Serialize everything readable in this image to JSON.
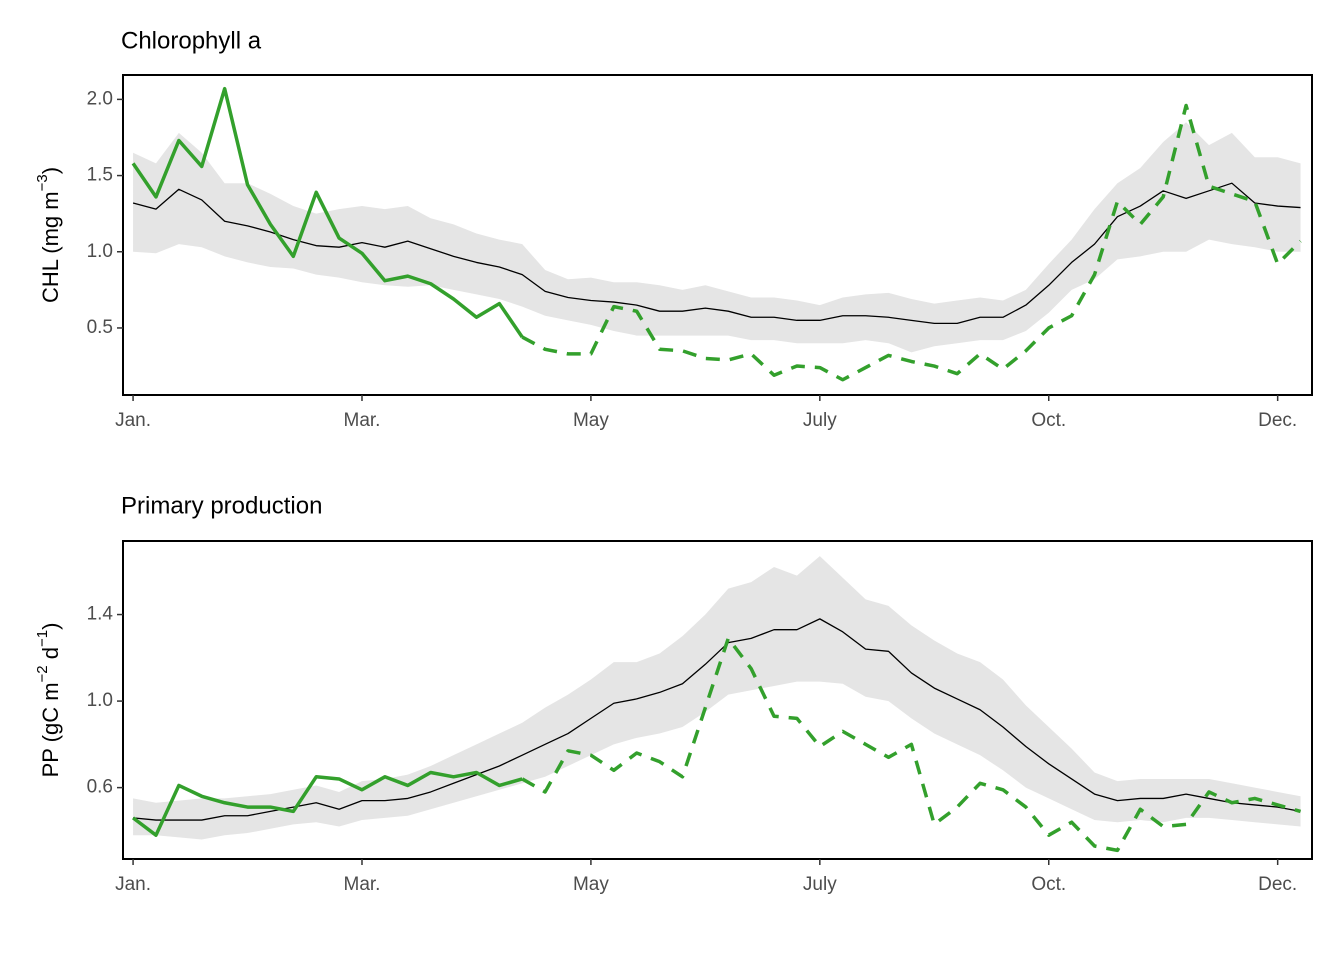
{
  "chart_data": [
    {
      "type": "line",
      "title": "Chlorophyll a",
      "ylabel": [
        "CHL (mg m",
        "−3",
        ")"
      ],
      "x": [
        0,
        1,
        2,
        3,
        4,
        5,
        6,
        7,
        8,
        9,
        10,
        11,
        12,
        13,
        14,
        15,
        16,
        17,
        18,
        19,
        20,
        21,
        22,
        23,
        24,
        25,
        26,
        27,
        28,
        29,
        30,
        31,
        32,
        33,
        34,
        35,
        36,
        37,
        38,
        39,
        40,
        41,
        42,
        43,
        44,
        45,
        46,
        47,
        48,
        49,
        50,
        51
      ],
      "xlim": [
        -0.44,
        51.5
      ],
      "xticks": [
        {
          "value": 0,
          "label": "Jan."
        },
        {
          "value": 10,
          "label": "Mar."
        },
        {
          "value": 20,
          "label": "May"
        },
        {
          "value": 30,
          "label": "July"
        },
        {
          "value": 40,
          "label": "Oct."
        },
        {
          "value": 50,
          "label": "Dec."
        }
      ],
      "ylim": [
        0.06,
        2.16
      ],
      "yticks": [
        0.5,
        {
          "value": 1,
          "label": "1.0"
        },
        1.5,
        {
          "value": 2,
          "label": "2.0"
        }
      ],
      "band": {
        "color": "#e5e5e5",
        "lower": [
          1.0,
          0.99,
          1.05,
          1.03,
          0.97,
          0.93,
          0.9,
          0.89,
          0.85,
          0.83,
          0.8,
          0.78,
          0.77,
          0.78,
          0.75,
          0.72,
          0.69,
          0.64,
          0.58,
          0.55,
          0.52,
          0.48,
          0.45,
          0.45,
          0.45,
          0.45,
          0.45,
          0.42,
          0.42,
          0.4,
          0.4,
          0.4,
          0.42,
          0.4,
          0.34,
          0.38,
          0.4,
          0.42,
          0.42,
          0.48,
          0.6,
          0.75,
          0.82,
          0.95,
          0.97,
          1.0,
          1.0,
          1.08,
          1.05,
          1.03,
          1.0,
          1.0
        ],
        "upper": [
          1.65,
          1.58,
          1.78,
          1.65,
          1.45,
          1.45,
          1.38,
          1.3,
          1.25,
          1.28,
          1.3,
          1.28,
          1.3,
          1.22,
          1.18,
          1.12,
          1.08,
          1.05,
          0.88,
          0.82,
          0.83,
          0.8,
          0.8,
          0.78,
          0.75,
          0.78,
          0.74,
          0.7,
          0.7,
          0.68,
          0.65,
          0.7,
          0.72,
          0.73,
          0.69,
          0.66,
          0.68,
          0.7,
          0.68,
          0.75,
          0.92,
          1.08,
          1.28,
          1.45,
          1.55,
          1.72,
          1.85,
          1.7,
          1.78,
          1.62,
          1.62,
          1.58
        ]
      },
      "series": [
        {
          "color": "#000000",
          "width": 1.3,
          "dash": false,
          "values": [
            1.32,
            1.28,
            1.41,
            1.34,
            1.2,
            1.17,
            1.13,
            1.08,
            1.04,
            1.03,
            1.06,
            1.03,
            1.07,
            1.02,
            0.97,
            0.93,
            0.9,
            0.85,
            0.74,
            0.7,
            0.68,
            0.67,
            0.65,
            0.61,
            0.61,
            0.63,
            0.61,
            0.57,
            0.57,
            0.55,
            0.55,
            0.58,
            0.58,
            0.57,
            0.55,
            0.53,
            0.53,
            0.57,
            0.57,
            0.65,
            0.78,
            0.93,
            1.05,
            1.23,
            1.3,
            1.4,
            1.35,
            1.4,
            1.45,
            1.32,
            1.3,
            1.29
          ]
        },
        {
          "color": "#33a02c",
          "width": 3.5,
          "dash": false,
          "values": [
            1.58,
            1.36,
            1.73,
            1.56,
            2.07,
            1.44,
            1.18,
            0.97,
            1.39,
            1.09,
            0.99,
            0.81,
            0.84,
            0.79,
            0.69,
            0.57,
            0.66,
            0.44,
            null,
            null,
            null,
            null,
            null,
            null,
            null,
            null,
            null,
            null,
            null,
            null,
            null,
            null,
            null,
            null,
            null,
            null,
            null,
            null,
            null,
            null,
            null,
            null,
            null,
            null,
            null,
            null,
            null,
            null,
            null,
            null,
            null,
            null
          ]
        },
        {
          "color": "#33a02c",
          "width": 3.5,
          "dash": true,
          "values": [
            null,
            null,
            null,
            null,
            null,
            null,
            null,
            null,
            null,
            null,
            null,
            null,
            null,
            null,
            null,
            null,
            null,
            0.44,
            0.36,
            0.33,
            0.33,
            0.64,
            0.61,
            0.36,
            0.35,
            0.3,
            0.29,
            0.33,
            0.19,
            0.25,
            0.24,
            0.16,
            0.24,
            0.32,
            0.28,
            0.25,
            0.2,
            0.33,
            0.23,
            0.35,
            0.5,
            0.58,
            0.85,
            1.33,
            1.18,
            1.36,
            1.96,
            1.43,
            1.38,
            1.33,
            0.92,
            1.07
          ]
        }
      ]
    },
    {
      "type": "line",
      "title": "Primary production",
      "ylabel": [
        "PP (gC m",
        "−2",
        " d",
        "−1",
        ")"
      ],
      "x": [
        0,
        1,
        2,
        3,
        4,
        5,
        6,
        7,
        8,
        9,
        10,
        11,
        12,
        13,
        14,
        15,
        16,
        17,
        18,
        19,
        20,
        21,
        22,
        23,
        24,
        25,
        26,
        27,
        28,
        29,
        30,
        31,
        32,
        33,
        34,
        35,
        36,
        37,
        38,
        39,
        40,
        41,
        42,
        43,
        44,
        45,
        46,
        47,
        48,
        49,
        50,
        51
      ],
      "xlim": [
        -0.44,
        51.5
      ],
      "xticks": [
        {
          "value": 0,
          "label": "Jan."
        },
        {
          "value": 10,
          "label": "Mar."
        },
        {
          "value": 20,
          "label": "May"
        },
        {
          "value": 30,
          "label": "July"
        },
        {
          "value": 40,
          "label": "Oct."
        },
        {
          "value": 50,
          "label": "Dec."
        }
      ],
      "ylim": [
        0.27,
        1.74
      ],
      "yticks": [
        0.6,
        {
          "value": 1,
          "label": "1.0"
        },
        1.4
      ],
      "band": {
        "color": "#e5e5e5",
        "lower": [
          0.38,
          0.38,
          0.37,
          0.36,
          0.38,
          0.39,
          0.41,
          0.43,
          0.44,
          0.42,
          0.45,
          0.46,
          0.47,
          0.5,
          0.53,
          0.56,
          0.59,
          0.62,
          0.65,
          0.7,
          0.75,
          0.8,
          0.83,
          0.85,
          0.88,
          0.95,
          1.03,
          1.05,
          1.07,
          1.09,
          1.09,
          1.08,
          1.02,
          1.0,
          0.92,
          0.85,
          0.8,
          0.75,
          0.68,
          0.6,
          0.55,
          0.5,
          0.45,
          0.44,
          0.45,
          0.44,
          0.46,
          0.46,
          0.45,
          0.44,
          0.43,
          0.42
        ],
        "upper": [
          0.55,
          0.53,
          0.54,
          0.55,
          0.55,
          0.56,
          0.57,
          0.59,
          0.61,
          0.58,
          0.63,
          0.64,
          0.66,
          0.7,
          0.75,
          0.8,
          0.85,
          0.9,
          0.97,
          1.03,
          1.1,
          1.18,
          1.18,
          1.22,
          1.3,
          1.4,
          1.52,
          1.55,
          1.62,
          1.58,
          1.67,
          1.57,
          1.47,
          1.44,
          1.35,
          1.28,
          1.22,
          1.18,
          1.1,
          0.98,
          0.88,
          0.78,
          0.67,
          0.63,
          0.64,
          0.64,
          0.64,
          0.64,
          0.62,
          0.6,
          0.58,
          0.56
        ]
      },
      "series": [
        {
          "color": "#000000",
          "width": 1.3,
          "dash": false,
          "values": [
            0.46,
            0.45,
            0.45,
            0.45,
            0.47,
            0.47,
            0.49,
            0.51,
            0.53,
            0.5,
            0.54,
            0.54,
            0.55,
            0.58,
            0.62,
            0.66,
            0.7,
            0.75,
            0.8,
            0.85,
            0.92,
            0.99,
            1.01,
            1.04,
            1.08,
            1.17,
            1.27,
            1.29,
            1.33,
            1.33,
            1.38,
            1.32,
            1.24,
            1.23,
            1.13,
            1.06,
            1.01,
            0.96,
            0.88,
            0.79,
            0.71,
            0.64,
            0.57,
            0.54,
            0.55,
            0.55,
            0.57,
            0.55,
            0.53,
            0.52,
            0.51,
            0.49
          ]
        },
        {
          "color": "#33a02c",
          "width": 3.5,
          "dash": false,
          "values": [
            0.46,
            0.38,
            0.61,
            0.56,
            0.53,
            0.51,
            0.51,
            0.49,
            0.65,
            0.64,
            0.59,
            0.65,
            0.61,
            0.67,
            0.65,
            0.67,
            0.61,
            0.64,
            null,
            null,
            null,
            null,
            null,
            null,
            null,
            null,
            null,
            null,
            null,
            null,
            null,
            null,
            null,
            null,
            null,
            null,
            null,
            null,
            null,
            null,
            null,
            null,
            null,
            null,
            null,
            null,
            null,
            null,
            null,
            null,
            null,
            null
          ]
        },
        {
          "color": "#33a02c",
          "width": 3.5,
          "dash": true,
          "values": [
            null,
            null,
            null,
            null,
            null,
            null,
            null,
            null,
            null,
            null,
            null,
            null,
            null,
            null,
            null,
            null,
            null,
            0.64,
            0.58,
            0.77,
            0.75,
            0.68,
            0.76,
            0.72,
            0.65,
            0.97,
            1.29,
            1.15,
            0.93,
            0.92,
            0.79,
            0.86,
            0.8,
            0.74,
            0.8,
            0.43,
            0.51,
            0.62,
            0.59,
            0.51,
            0.38,
            0.44,
            0.33,
            0.31,
            0.5,
            0.42,
            0.43,
            0.58,
            0.53,
            0.55,
            0.52,
            0.49
          ]
        }
      ]
    }
  ]
}
